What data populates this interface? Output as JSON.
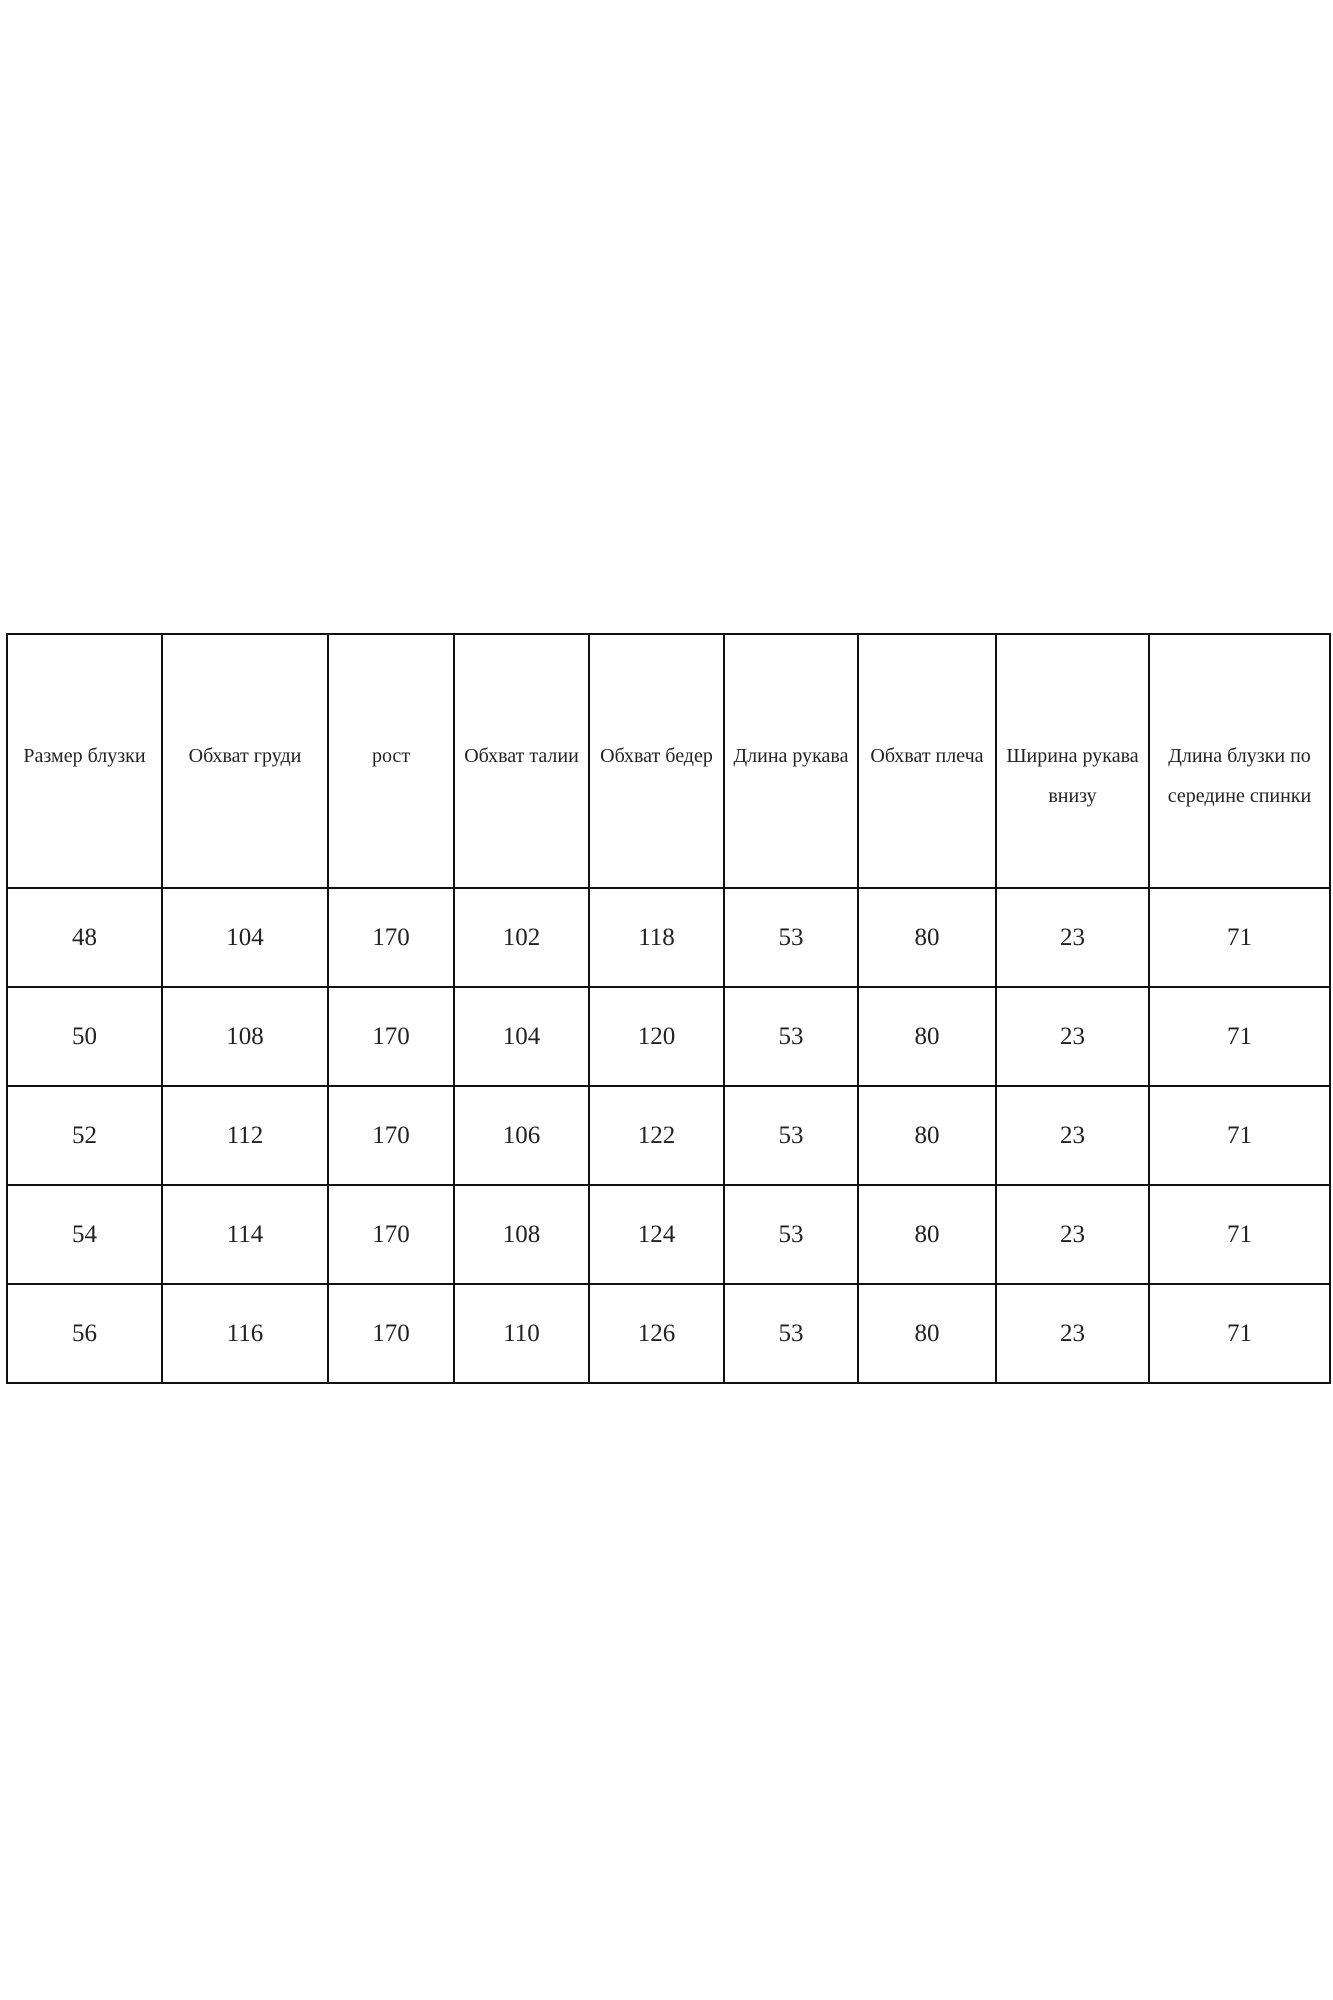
{
  "table": {
    "header": [
      "Размер блузки",
      "Обхват груди",
      "рост",
      "Обхват талии",
      "Обхват бедер",
      "Длина рукава",
      "Обхват плеча",
      "Ширина рукава внизу",
      "Длина блузки по середине спинки"
    ],
    "rows": [
      [
        48,
        104,
        170,
        102,
        118,
        53,
        80,
        23,
        71
      ],
      [
        50,
        108,
        170,
        104,
        120,
        53,
        80,
        23,
        71
      ],
      [
        52,
        112,
        170,
        106,
        122,
        53,
        80,
        23,
        71
      ],
      [
        54,
        114,
        170,
        108,
        124,
        53,
        80,
        23,
        71
      ],
      [
        56,
        116,
        170,
        110,
        126,
        53,
        80,
        23,
        71
      ]
    ]
  }
}
